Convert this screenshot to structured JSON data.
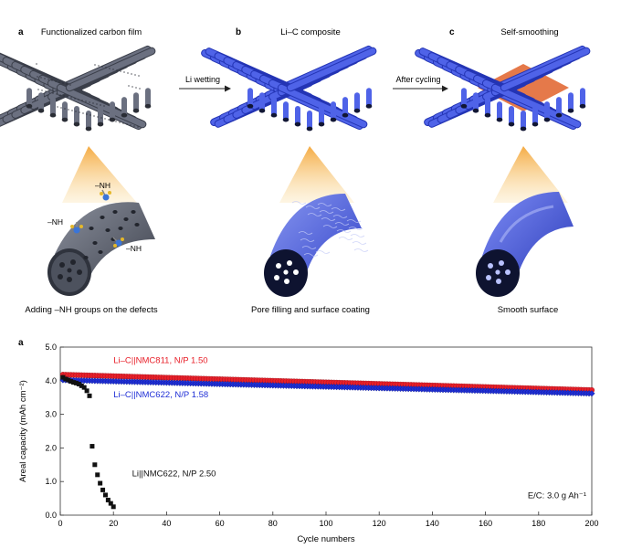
{
  "top_figure": {
    "panels": [
      {
        "letter": "a",
        "title": "Functionalized carbon film",
        "caption": "Adding –NH groups on the defects"
      },
      {
        "letter": "b",
        "title": "Li–C composite",
        "caption": "Pore filling and surface coating"
      },
      {
        "letter": "c",
        "title": "Self-smoothing",
        "caption": "Smooth surface"
      }
    ],
    "arrows": [
      "Li wetting",
      "After cycling"
    ],
    "nh_labels": [
      "–NH",
      "–NH",
      "–NH"
    ]
  },
  "chart_data": {
    "type": "scatter",
    "panel_letter": "a",
    "xlabel": "Cycle numbers",
    "ylabel": "Areal capacity (mAh cm⁻²)",
    "xlim": [
      0,
      200
    ],
    "ylim": [
      0,
      5
    ],
    "x_ticks": [
      "0",
      "20",
      "40",
      "60",
      "80",
      "100",
      "120",
      "140",
      "160",
      "180",
      "200"
    ],
    "y_ticks": [
      "0.0",
      "1.0",
      "2.0",
      "3.0",
      "4.0",
      "5.0"
    ],
    "annotation": "E/C: 3.0 g Ah⁻¹",
    "series": [
      {
        "name": "Li–C||NMC811, N/P 1.50",
        "color": "#e8202a",
        "marker": "circle",
        "x": [
          1,
          200
        ],
        "y": [
          4.18,
          3.72
        ]
      },
      {
        "name": "Li–C||NMC622, N/P 1.58",
        "color": "#1f2fd6",
        "marker": "diamond",
        "x": [
          1,
          200
        ],
        "y": [
          4.02,
          3.62
        ]
      },
      {
        "name": "Li||NMC622, N/P 2.50",
        "color": "#111111",
        "marker": "square",
        "x": [
          1,
          2,
          3,
          4,
          5,
          6,
          7,
          8,
          9,
          10,
          11,
          12,
          13,
          14,
          15,
          16,
          17,
          18,
          19,
          20
        ],
        "y": [
          4.1,
          4.05,
          4.02,
          3.98,
          3.95,
          3.93,
          3.9,
          3.85,
          3.8,
          3.7,
          3.55,
          2.05,
          1.5,
          1.2,
          0.95,
          0.75,
          0.6,
          0.45,
          0.35,
          0.25
        ]
      }
    ]
  }
}
